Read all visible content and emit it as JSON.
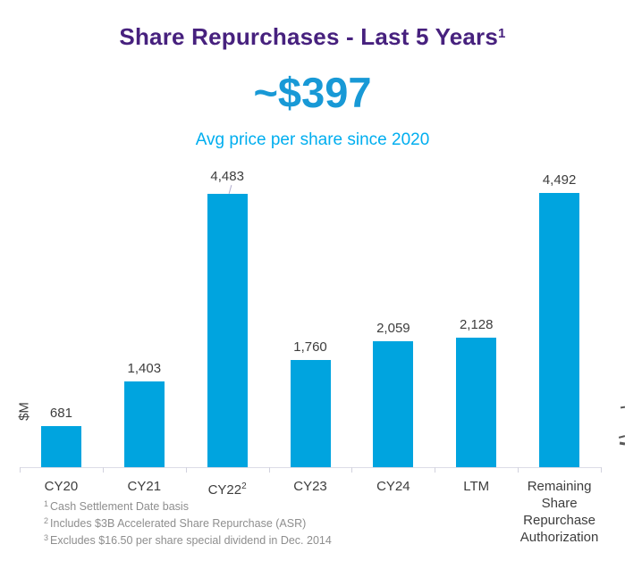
{
  "header": {
    "title": "Share Repurchases - Last 5 Years",
    "title_superscript": "1"
  },
  "highlight": {
    "value": "~$397",
    "caption": "Avg price per share since 2020"
  },
  "chart_data": {
    "type": "bar",
    "title": "Share Repurchases - Last 5 Years",
    "ylabel": "$M",
    "xlabel": "",
    "categories": [
      "CY20",
      "CY21",
      "CY22",
      "CY23",
      "CY24",
      "LTM",
      "Remaining Share Repurchase Authorization"
    ],
    "category_superscripts": [
      "",
      "",
      "2",
      "",
      "",
      "",
      ""
    ],
    "values": [
      681,
      1403,
      4483,
      1760,
      2059,
      2128,
      4492
    ],
    "value_labels": [
      "681",
      "1,403",
      "4,483",
      "1,760",
      "2,059",
      "2,128",
      "4,492"
    ],
    "ylim": [
      0,
      4492
    ],
    "grid": false,
    "legend": false,
    "bar_color": "#00a4df",
    "leader_line_on_index": 2
  },
  "footnotes": [
    {
      "sup": "1",
      "text": "Cash Settlement Date basis"
    },
    {
      "sup": "2",
      "text": "Includes $3B Accelerated Share Repurchase (ASR)"
    },
    {
      "sup": "3",
      "text": "Excludes $16.50 per share special dividend in Dec. 2014"
    }
  ],
  "colors": {
    "title": "#47217e",
    "highlight_value": "#1899d6",
    "highlight_caption": "#00aeef",
    "bar": "#00a4df",
    "data_label": "#3d3d3d",
    "footnote": "#8e8e8e",
    "axis": "#dcdce6"
  }
}
